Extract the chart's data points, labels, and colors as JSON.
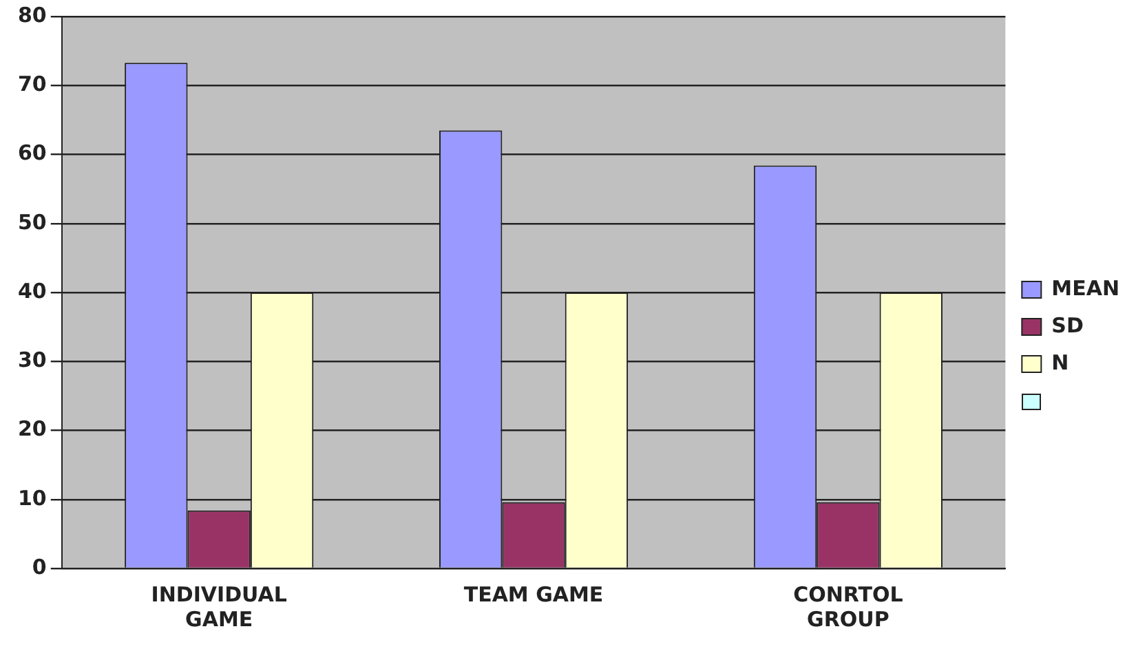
{
  "chart_data": {
    "type": "bar",
    "categories": [
      "INDIVIDUAL GAME",
      "TEAM GAME",
      "CONRTOL GROUP"
    ],
    "series": [
      {
        "name": "MEAN",
        "color": "#9999ff",
        "values": [
          73.3,
          63.5,
          58.4
        ]
      },
      {
        "name": "SD",
        "color": "#993366",
        "values": [
          8.4,
          9.6,
          9.6
        ]
      },
      {
        "name": "N",
        "color": "#ffffcc",
        "values": [
          40,
          40,
          40
        ]
      }
    ],
    "ylim": [
      0,
      80
    ],
    "yticks": [
      0,
      10,
      20,
      30,
      40,
      50,
      60,
      70,
      80
    ],
    "grid": "y",
    "legend": "right"
  }
}
